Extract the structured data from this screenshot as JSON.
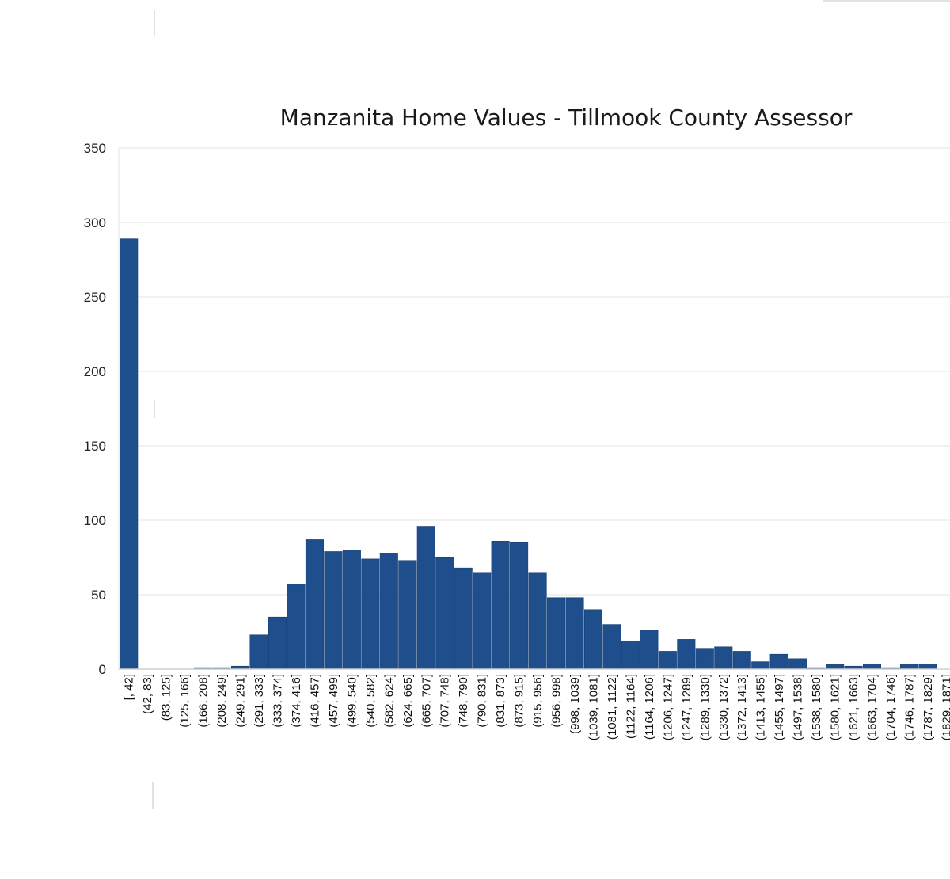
{
  "chart_data": {
    "type": "bar",
    "title": "Manzanita Home Values - Tillmook  County Assessor",
    "xlabel": "",
    "ylabel": "",
    "ylim": [
      0,
      350
    ],
    "yticks": [
      0,
      50,
      100,
      150,
      200,
      250,
      300,
      350
    ],
    "grid": true,
    "legend": "none",
    "bar_color": "#1F4E8C",
    "categories": [
      "[, 42]",
      "(42, 83]",
      "(83, 125]",
      "(125, 166]",
      "(166, 208]",
      "(208, 249]",
      "(249, 291]",
      "(291, 333]",
      "(333, 374]",
      "(374, 416]",
      "(416, 457]",
      "(457, 499]",
      "(499, 540]",
      "(540, 582]",
      "(582, 624]",
      "(624, 665]",
      "(665, 707]",
      "(707, 748]",
      "(748, 790]",
      "(790, 831]",
      "(831, 873]",
      "(873, 915]",
      "(915, 956]",
      "(956, 998]",
      "(998, 1039]",
      "(1039, 1081]",
      "(1081, 1122]",
      "(1122, 1164]",
      "(1164, 1206]",
      "(1206, 1247]",
      "(1247, 1289]",
      "(1289, 1330]",
      "(1330, 1372]",
      "(1372, 1413]",
      "(1413, 1455]",
      "(1455, 1497]",
      "(1497, 1538]",
      "(1538, 1580]",
      "(1580, 1621]",
      "(1621, 1663]",
      "(1663, 1704]",
      "(1704, 1746]",
      "(1746, 1787]",
      "(1787, 1829]",
      "(1829, 1871]"
    ],
    "values": [
      289,
      0,
      0,
      0,
      1,
      1,
      2,
      23,
      35,
      57,
      87,
      79,
      80,
      74,
      78,
      73,
      96,
      75,
      68,
      65,
      86,
      85,
      65,
      48,
      48,
      40,
      30,
      19,
      26,
      12,
      20,
      14,
      15,
      12,
      5,
      10,
      7,
      1,
      3,
      2,
      3,
      1,
      3,
      3,
      0
    ]
  }
}
